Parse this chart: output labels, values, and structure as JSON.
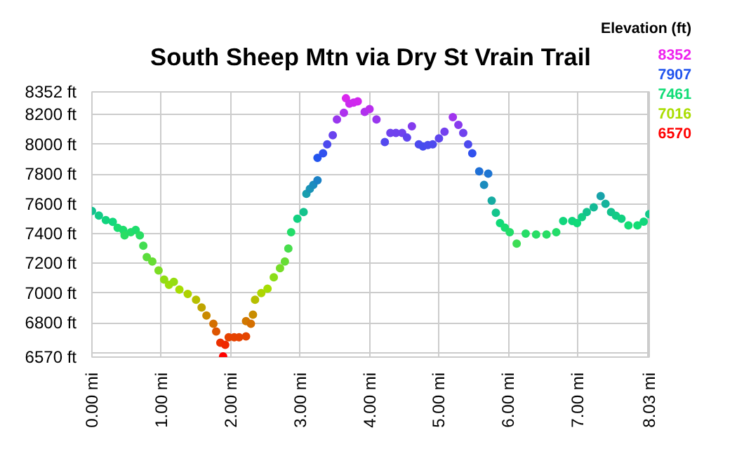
{
  "chart_data": {
    "type": "scatter",
    "title": "South Sheep Mtn via Dry St Vrain Trail",
    "annotations": [
      "Elevation (ft)",
      "8352",
      "7907",
      "7461",
      "7016",
      "6570"
    ],
    "marker": "circle",
    "grid": true,
    "x": [
      0,
      0.1,
      0.2,
      0.3,
      0.37,
      0.45,
      0.47,
      0.56,
      0.63,
      0.69,
      0.74,
      0.79,
      0.87,
      0.96,
      1.04,
      1.11,
      1.18,
      1.26,
      1.38,
      1.5,
      1.58,
      1.65,
      1.75,
      1.79,
      1.85,
      1.89,
      1.92,
      1.97,
      2.05,
      2.12,
      2.22,
      2.22,
      2.29,
      2.32,
      2.35,
      2.44,
      2.53,
      2.62,
      2.71,
      2.78,
      2.83,
      2.87,
      2.96,
      3.05,
      3.09,
      3.14,
      3.19,
      3.25,
      3.25,
      3.33,
      3.39,
      3.47,
      3.53,
      3.63,
      3.66,
      3.71,
      3.77,
      3.83,
      3.93,
      4.0,
      4.1,
      4.22,
      4.3,
      4.38,
      4.47,
      4.54,
      4.61,
      4.71,
      4.77,
      4.84,
      4.91,
      5.0,
      5.08,
      5.2,
      5.28,
      5.35,
      5.42,
      5.48,
      5.58,
      5.65,
      5.71,
      5.76,
      5.82,
      5.88,
      5.95,
      6.02,
      6.12,
      6.25,
      6.4,
      6.55,
      6.69,
      6.79,
      6.92,
      6.99,
      7.06,
      7.13,
      7.23,
      7.33,
      7.4,
      7.48,
      7.55,
      7.63,
      7.73,
      7.86,
      7.95,
      8.03
    ],
    "values": [
      7552,
      7521,
      7491,
      7479,
      7439,
      7424,
      7388,
      7409,
      7424,
      7388,
      7318,
      7242,
      7212,
      7152,
      7091,
      7055,
      7076,
      7024,
      6994,
      6955,
      6903,
      6849,
      6794,
      6742,
      6667,
      6575,
      6652,
      6703,
      6703,
      6703,
      6709,
      6812,
      6794,
      6855,
      6955,
      7000,
      7030,
      7106,
      7167,
      7212,
      7300,
      7409,
      7500,
      7545,
      7667,
      7700,
      7727,
      7758,
      7909,
      7939,
      8000,
      8061,
      8167,
      8212,
      8309,
      8273,
      8280,
      8288,
      8218,
      8236,
      8167,
      8015,
      8076,
      8076,
      8076,
      8045,
      8121,
      8000,
      7985,
      7995,
      8000,
      8040,
      8085,
      8182,
      8130,
      8076,
      8000,
      7939,
      7818,
      7727,
      7803,
      7621,
      7540,
      7470,
      7440,
      7409,
      7333,
      7400,
      7394,
      7394,
      7409,
      7485,
      7485,
      7470,
      7510,
      7545,
      7576,
      7652,
      7600,
      7545,
      7520,
      7500,
      7455,
      7455,
      7480,
      7530
    ],
    "xlim": [
      0,
      8.03
    ],
    "xticks": [
      {
        "value": 0,
        "label": "0.00 mi"
      },
      {
        "value": 1,
        "label": "1.00 mi"
      },
      {
        "value": 2,
        "label": "2.00 mi"
      },
      {
        "value": 3,
        "label": "3.00 mi"
      },
      {
        "value": 4,
        "label": "4.00 mi"
      },
      {
        "value": 5,
        "label": "5.00 mi"
      },
      {
        "value": 6,
        "label": "6.00 mi"
      },
      {
        "value": 7,
        "label": "7.00 mi"
      },
      {
        "value": 8,
        "label": null
      },
      {
        "value": 8.03,
        "label": "8.03 mi"
      }
    ],
    "ylim": [
      6570,
      8352
    ],
    "yticks": [
      {
        "value": 6570,
        "label": "6570 ft"
      },
      {
        "value": 6600,
        "label": null
      },
      {
        "value": 6800,
        "label": "6800 ft"
      },
      {
        "value": 7000,
        "label": "7000 ft"
      },
      {
        "value": 7200,
        "label": "7200 ft"
      },
      {
        "value": 7400,
        "label": "7400 ft"
      },
      {
        "value": 7600,
        "label": "7600 ft"
      },
      {
        "value": 7800,
        "label": "7800 ft"
      },
      {
        "value": 8000,
        "label": "8000 ft"
      },
      {
        "value": 8200,
        "label": "8200 ft"
      },
      {
        "value": 8352,
        "label": "8352 ft"
      }
    ]
  }
}
